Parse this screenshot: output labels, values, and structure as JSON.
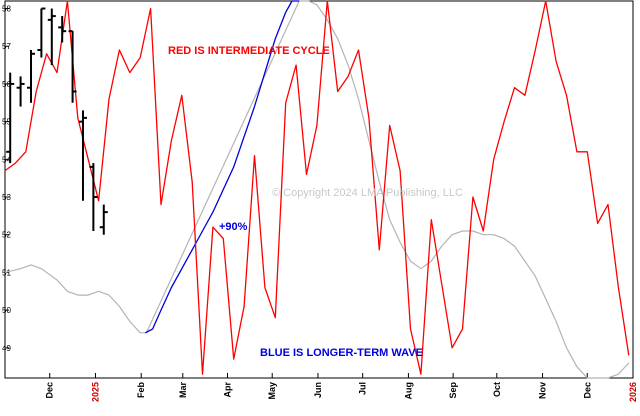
{
  "chart_data": {
    "type": "line",
    "title": "",
    "xlabel": "",
    "ylabel": "",
    "ylim": [
      48.2,
      58.2
    ],
    "yticks": [
      49,
      50,
      51,
      52,
      53,
      54,
      55,
      56,
      57,
      58
    ],
    "x_tick_labels": [
      {
        "label": "Dec",
        "color": "#000000"
      },
      {
        "label": "2025",
        "color": "#cc0000"
      },
      {
        "label": "Feb",
        "color": "#000000"
      },
      {
        "label": "Mar",
        "color": "#000000"
      },
      {
        "label": "Apr",
        "color": "#000000"
      },
      {
        "label": "May",
        "color": "#000000"
      },
      {
        "label": "Jun",
        "color": "#000000"
      },
      {
        "label": "Jul",
        "color": "#000000"
      },
      {
        "label": "Aug",
        "color": "#000000"
      },
      {
        "label": "Sep",
        "color": "#000000"
      },
      {
        "label": "Oct",
        "color": "#000000"
      },
      {
        "label": "Nov",
        "color": "#000000"
      },
      {
        "label": "Dec",
        "color": "#000000"
      },
      {
        "label": "2026",
        "color": "#cc0000"
      }
    ],
    "x_tick_weeks": [
      4.3,
      8.7,
      13.1,
      17.1,
      21.4,
      25.7,
      30.1,
      34.4,
      38.8,
      43.1,
      47.3,
      51.7,
      56.0,
      60.4
    ],
    "series": [
      {
        "name": "",
        "color": "#ff0000",
        "points": [
          [
            0,
            53.7
          ],
          [
            1,
            53.9
          ],
          [
            2,
            54.2
          ],
          [
            3,
            55.8
          ],
          [
            4,
            56.8
          ],
          [
            5,
            56.3
          ],
          [
            6,
            58.2
          ],
          [
            7,
            55.1
          ],
          [
            8,
            54.0
          ],
          [
            9,
            52.9
          ],
          [
            10,
            55.6
          ],
          [
            11,
            56.9
          ],
          [
            12,
            56.3
          ],
          [
            13,
            56.7
          ],
          [
            14,
            58.0
          ],
          [
            15,
            52.8
          ],
          [
            16,
            54.5
          ],
          [
            17,
            55.7
          ],
          [
            18,
            53.4
          ],
          [
            19,
            48.3
          ],
          [
            20,
            52.2
          ],
          [
            21,
            51.9
          ],
          [
            22,
            48.7
          ],
          [
            23,
            50.1
          ],
          [
            24,
            54.1
          ],
          [
            25,
            50.6
          ],
          [
            26,
            49.8
          ],
          [
            27,
            55.5
          ],
          [
            28,
            56.5
          ],
          [
            29,
            53.6
          ],
          [
            30,
            54.9
          ],
          [
            31,
            58.2
          ],
          [
            32,
            55.8
          ],
          [
            33,
            56.2
          ],
          [
            34,
            56.9
          ],
          [
            35,
            55.1
          ],
          [
            36,
            51.6
          ],
          [
            37,
            54.9
          ],
          [
            38,
            53.7
          ],
          [
            39,
            49.5
          ],
          [
            40,
            48.3
          ],
          [
            41,
            52.4
          ],
          [
            42,
            50.7
          ],
          [
            43,
            49.0
          ],
          [
            44,
            49.5
          ],
          [
            45,
            53.0
          ],
          [
            46,
            52.1
          ],
          [
            47,
            54.0
          ],
          [
            48,
            55.0
          ],
          [
            49,
            55.9
          ],
          [
            50,
            55.7
          ],
          [
            51,
            56.9
          ],
          [
            52,
            58.2
          ],
          [
            53,
            56.6
          ],
          [
            54,
            55.7
          ],
          [
            55,
            54.2
          ],
          [
            56,
            54.2
          ],
          [
            57,
            52.3
          ],
          [
            58,
            52.8
          ],
          [
            59,
            50.6
          ],
          [
            60,
            48.8
          ]
        ]
      },
      {
        "name": "",
        "color": "#0000dd",
        "points": [
          [
            13.5,
            49.4
          ],
          [
            14.2,
            49.5
          ],
          [
            15.0,
            50.0
          ],
          [
            16.0,
            50.6
          ],
          [
            17.0,
            51.1
          ],
          [
            18.0,
            51.6
          ],
          [
            19.0,
            52.1
          ],
          [
            20.0,
            52.6
          ],
          [
            21.0,
            53.2
          ],
          [
            22.0,
            53.8
          ],
          [
            23.0,
            54.6
          ],
          [
            24.0,
            55.4
          ],
          [
            25.0,
            56.3
          ],
          [
            26.0,
            57.2
          ],
          [
            27.0,
            57.9
          ],
          [
            27.6,
            58.2
          ],
          [
            28.3,
            58.2
          ]
        ]
      },
      {
        "name": "",
        "color": "#b4b4b4",
        "points": [
          [
            0,
            51.0
          ],
          [
            1.5,
            51.1
          ],
          [
            2.5,
            51.2
          ],
          [
            3.5,
            51.1
          ],
          [
            5.0,
            50.8
          ],
          [
            6.0,
            50.5
          ],
          [
            7.0,
            50.4
          ],
          [
            8.0,
            50.4
          ],
          [
            9.0,
            50.5
          ],
          [
            10.0,
            50.4
          ],
          [
            11.0,
            50.1
          ],
          [
            12.0,
            49.7
          ],
          [
            13.0,
            49.4
          ],
          [
            13.6,
            49.4
          ],
          [
            28.3,
            58.2
          ],
          [
            29.2,
            58.2
          ],
          [
            30.0,
            58.1
          ],
          [
            31.0,
            57.7
          ],
          [
            32.0,
            57.2
          ],
          [
            33.0,
            56.5
          ],
          [
            34.0,
            55.6
          ],
          [
            35.0,
            54.5
          ],
          [
            36.0,
            53.4
          ],
          [
            37.0,
            52.4
          ],
          [
            38.0,
            51.8
          ],
          [
            39.0,
            51.3
          ],
          [
            40.0,
            51.1
          ],
          [
            41.0,
            51.3
          ],
          [
            42.0,
            51.7
          ],
          [
            43.0,
            52.0
          ],
          [
            44.0,
            52.1
          ],
          [
            45.0,
            52.1
          ],
          [
            46.0,
            52.0
          ],
          [
            47.0,
            52.0
          ],
          [
            48.0,
            51.9
          ],
          [
            49.0,
            51.7
          ],
          [
            50.0,
            51.3
          ],
          [
            51.0,
            50.9
          ],
          [
            52.0,
            50.3
          ],
          [
            53.0,
            49.7
          ],
          [
            54.0,
            49.0
          ],
          [
            55.0,
            48.5
          ],
          [
            56.0,
            48.2
          ],
          [
            57.0,
            48.2
          ],
          [
            58.0,
            48.2
          ],
          [
            59.0,
            48.3
          ],
          [
            60.0,
            48.6
          ]
        ]
      }
    ],
    "price_bars": {
      "color": "#000000",
      "bars": [
        {
          "x": 0.5,
          "high": 56.3,
          "low": 53.9,
          "open": 54.2,
          "close": 56.0
        },
        {
          "x": 1.5,
          "high": 56.2,
          "low": 55.4,
          "open": 55.9,
          "close": 56.0
        },
        {
          "x": 2.5,
          "high": 56.9,
          "low": 55.5,
          "open": 55.9,
          "close": 56.8
        },
        {
          "x": 3.5,
          "high": 58.0,
          "low": 56.7,
          "open": 56.9,
          "close": 58.0
        },
        {
          "x": 4.5,
          "high": 58.0,
          "low": 56.5,
          "open": 57.7,
          "close": 57.8
        },
        {
          "x": 5.5,
          "high": 57.8,
          "low": 57.1,
          "open": 57.5,
          "close": 57.4
        },
        {
          "x": 6.5,
          "high": 57.4,
          "low": 55.5,
          "open": 57.4,
          "close": 55.8
        },
        {
          "x": 7.5,
          "high": 55.3,
          "low": 52.9,
          "open": 55.0,
          "close": 55.1
        },
        {
          "x": 8.5,
          "high": 53.9,
          "low": 52.1,
          "open": 53.8,
          "close": 53.0
        },
        {
          "x": 9.5,
          "high": 52.8,
          "low": 52.0,
          "open": 52.2,
          "close": 52.6
        }
      ]
    },
    "annotations": {
      "red_label": "RED IS INTERMEDIATE CYCLE",
      "blue_label": "BLUE IS LONGER-TERM WAVE",
      "pct_label": "+90%",
      "watermark": "© Copyright 2024 LMA Publishing, LLC"
    },
    "colors": {
      "intermediate": "#ff0000",
      "longer_term": "#0000dd",
      "ghost_wave": "#b4b4b4",
      "price": "#000000",
      "year_label": "#cc0000"
    }
  }
}
